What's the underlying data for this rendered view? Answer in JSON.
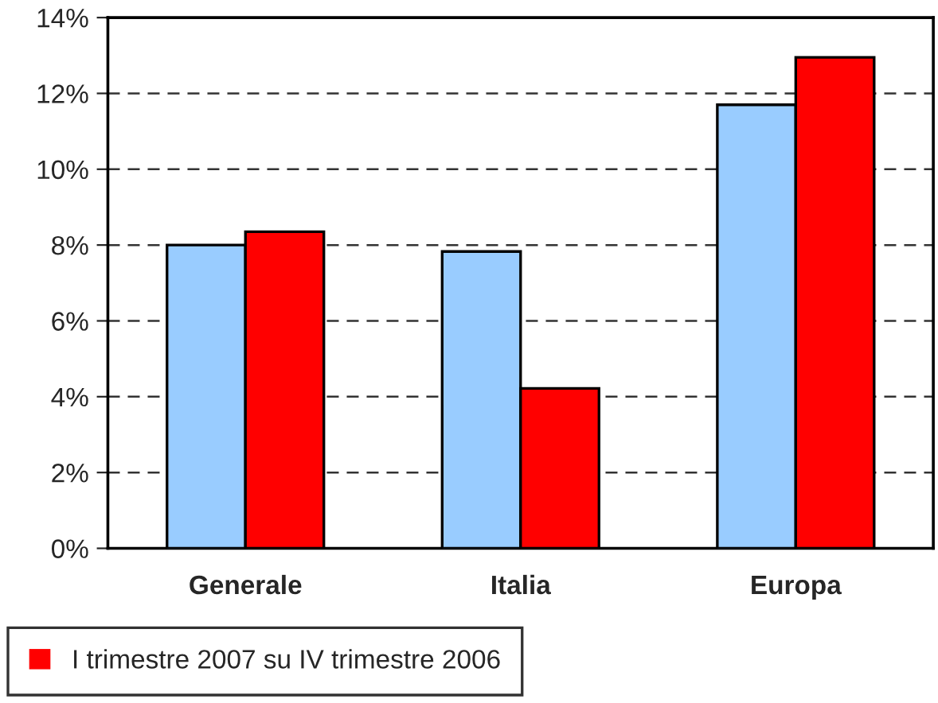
{
  "chart_data": {
    "type": "bar",
    "categories": [
      "Generale",
      "Italia",
      "Europa"
    ],
    "series": [
      {
        "color": "#99ccff",
        "values": [
          8.0,
          7.83,
          11.7
        ]
      },
      {
        "name": "I trimestre 2007 su IV trimestre 2006",
        "color": "#ff0000",
        "values": [
          8.35,
          4.22,
          12.95
        ]
      }
    ],
    "ylim": [
      0,
      14
    ],
    "yticks": [
      {
        "value": 0,
        "label": "0%"
      },
      {
        "value": 2,
        "label": "2%"
      },
      {
        "value": 4,
        "label": "4%"
      },
      {
        "value": 6,
        "label": "6%"
      },
      {
        "value": 8,
        "label": "8%"
      },
      {
        "value": 10,
        "label": "10%"
      },
      {
        "value": 12,
        "label": "12%"
      },
      {
        "value": 14,
        "label": "14%"
      }
    ],
    "grid": "y",
    "legend": "bottom"
  }
}
